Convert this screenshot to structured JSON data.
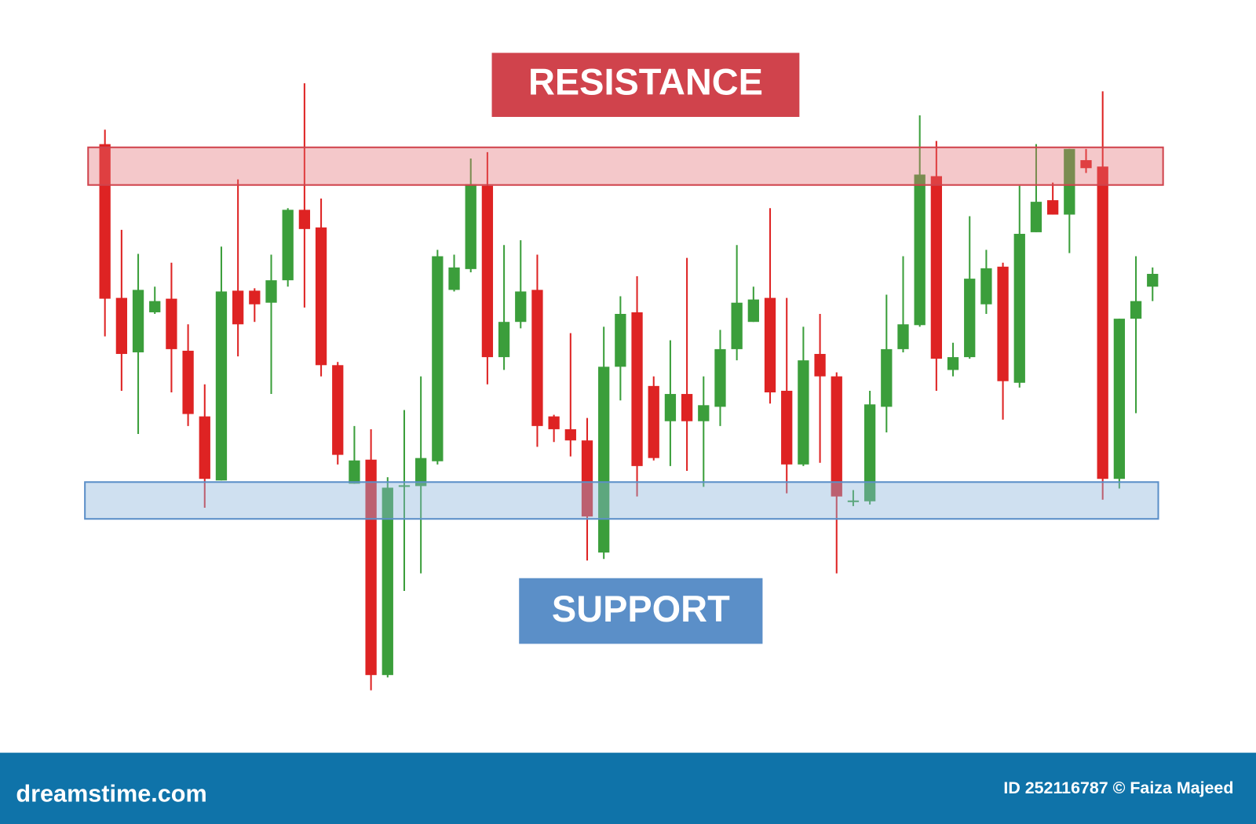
{
  "chart_data": {
    "type": "candlestick",
    "up_color": "#3b9e3b",
    "down_color": "#de2323",
    "ylim": [
      0,
      800
    ],
    "open": [
      700,
      508,
      440,
      490,
      507,
      442,
      360,
      280,
      517,
      517,
      502,
      530,
      618,
      596,
      424,
      276,
      306,
      37,
      273,
      273,
      304,
      518,
      544,
      648,
      434,
      478,
      518,
      360,
      344,
      330,
      190,
      422,
      490,
      398,
      354,
      388,
      354,
      372,
      444,
      478,
      508,
      392,
      300,
      438,
      410,
      254,
      254,
      372,
      444,
      474,
      660,
      418,
      434,
      500,
      547,
      402,
      590,
      630,
      612,
      680,
      672,
      282,
      482,
      522
    ],
    "high": [
      718,
      593,
      563,
      522,
      552,
      475,
      400,
      572,
      656,
      520,
      562,
      620,
      776,
      632,
      428,
      348,
      344,
      284,
      368,
      410,
      568,
      562,
      682,
      690,
      574,
      580,
      562,
      362,
      464,
      358,
      472,
      510,
      535,
      410,
      455,
      558,
      410,
      468,
      574,
      522,
      620,
      508,
      472,
      488,
      415,
      268,
      392,
      512,
      560,
      736,
      704,
      452,
      610,
      568,
      552,
      648,
      700,
      652,
      694,
      694,
      766,
      482,
      560,
      546
    ],
    "low": [
      460,
      392,
      338,
      488,
      390,
      348,
      246,
      280,
      435,
      478,
      388,
      522,
      496,
      410,
      300,
      276,
      18,
      34,
      142,
      164,
      300,
      516,
      540,
      400,
      418,
      470,
      322,
      328,
      310,
      180,
      182,
      380,
      260,
      305,
      298,
      292,
      272,
      348,
      430,
      478,
      376,
      264,
      298,
      302,
      164,
      248,
      250,
      340,
      440,
      472,
      392,
      410,
      432,
      488,
      356,
      396,
      590,
      612,
      564,
      664,
      256,
      270,
      364,
      504
    ],
    "close": [
      507,
      438,
      518,
      504,
      444,
      363,
      282,
      516,
      475,
      500,
      530,
      618,
      594,
      424,
      312,
      305,
      37,
      271,
      274,
      308,
      560,
      546,
      650,
      434,
      478,
      516,
      348,
      344,
      330,
      235,
      422,
      488,
      298,
      308,
      388,
      354,
      374,
      444,
      502,
      506,
      390,
      300,
      430,
      410,
      260,
      255,
      375,
      444,
      475,
      662,
      432,
      434,
      532,
      545,
      404,
      588,
      628,
      612,
      694,
      670,
      282,
      482,
      504,
      538
    ],
    "resistance": {
      "label": "RESISTANCE",
      "range": [
        649,
        696
      ],
      "color": "#d0434c"
    },
    "support": {
      "label": "SUPPORT",
      "range": [
        232,
        278
      ],
      "color": "#5b8fc8"
    }
  },
  "footer": {
    "site": "dreamstime.com",
    "credit": "ID 252116787 © Faiza Majeed"
  }
}
